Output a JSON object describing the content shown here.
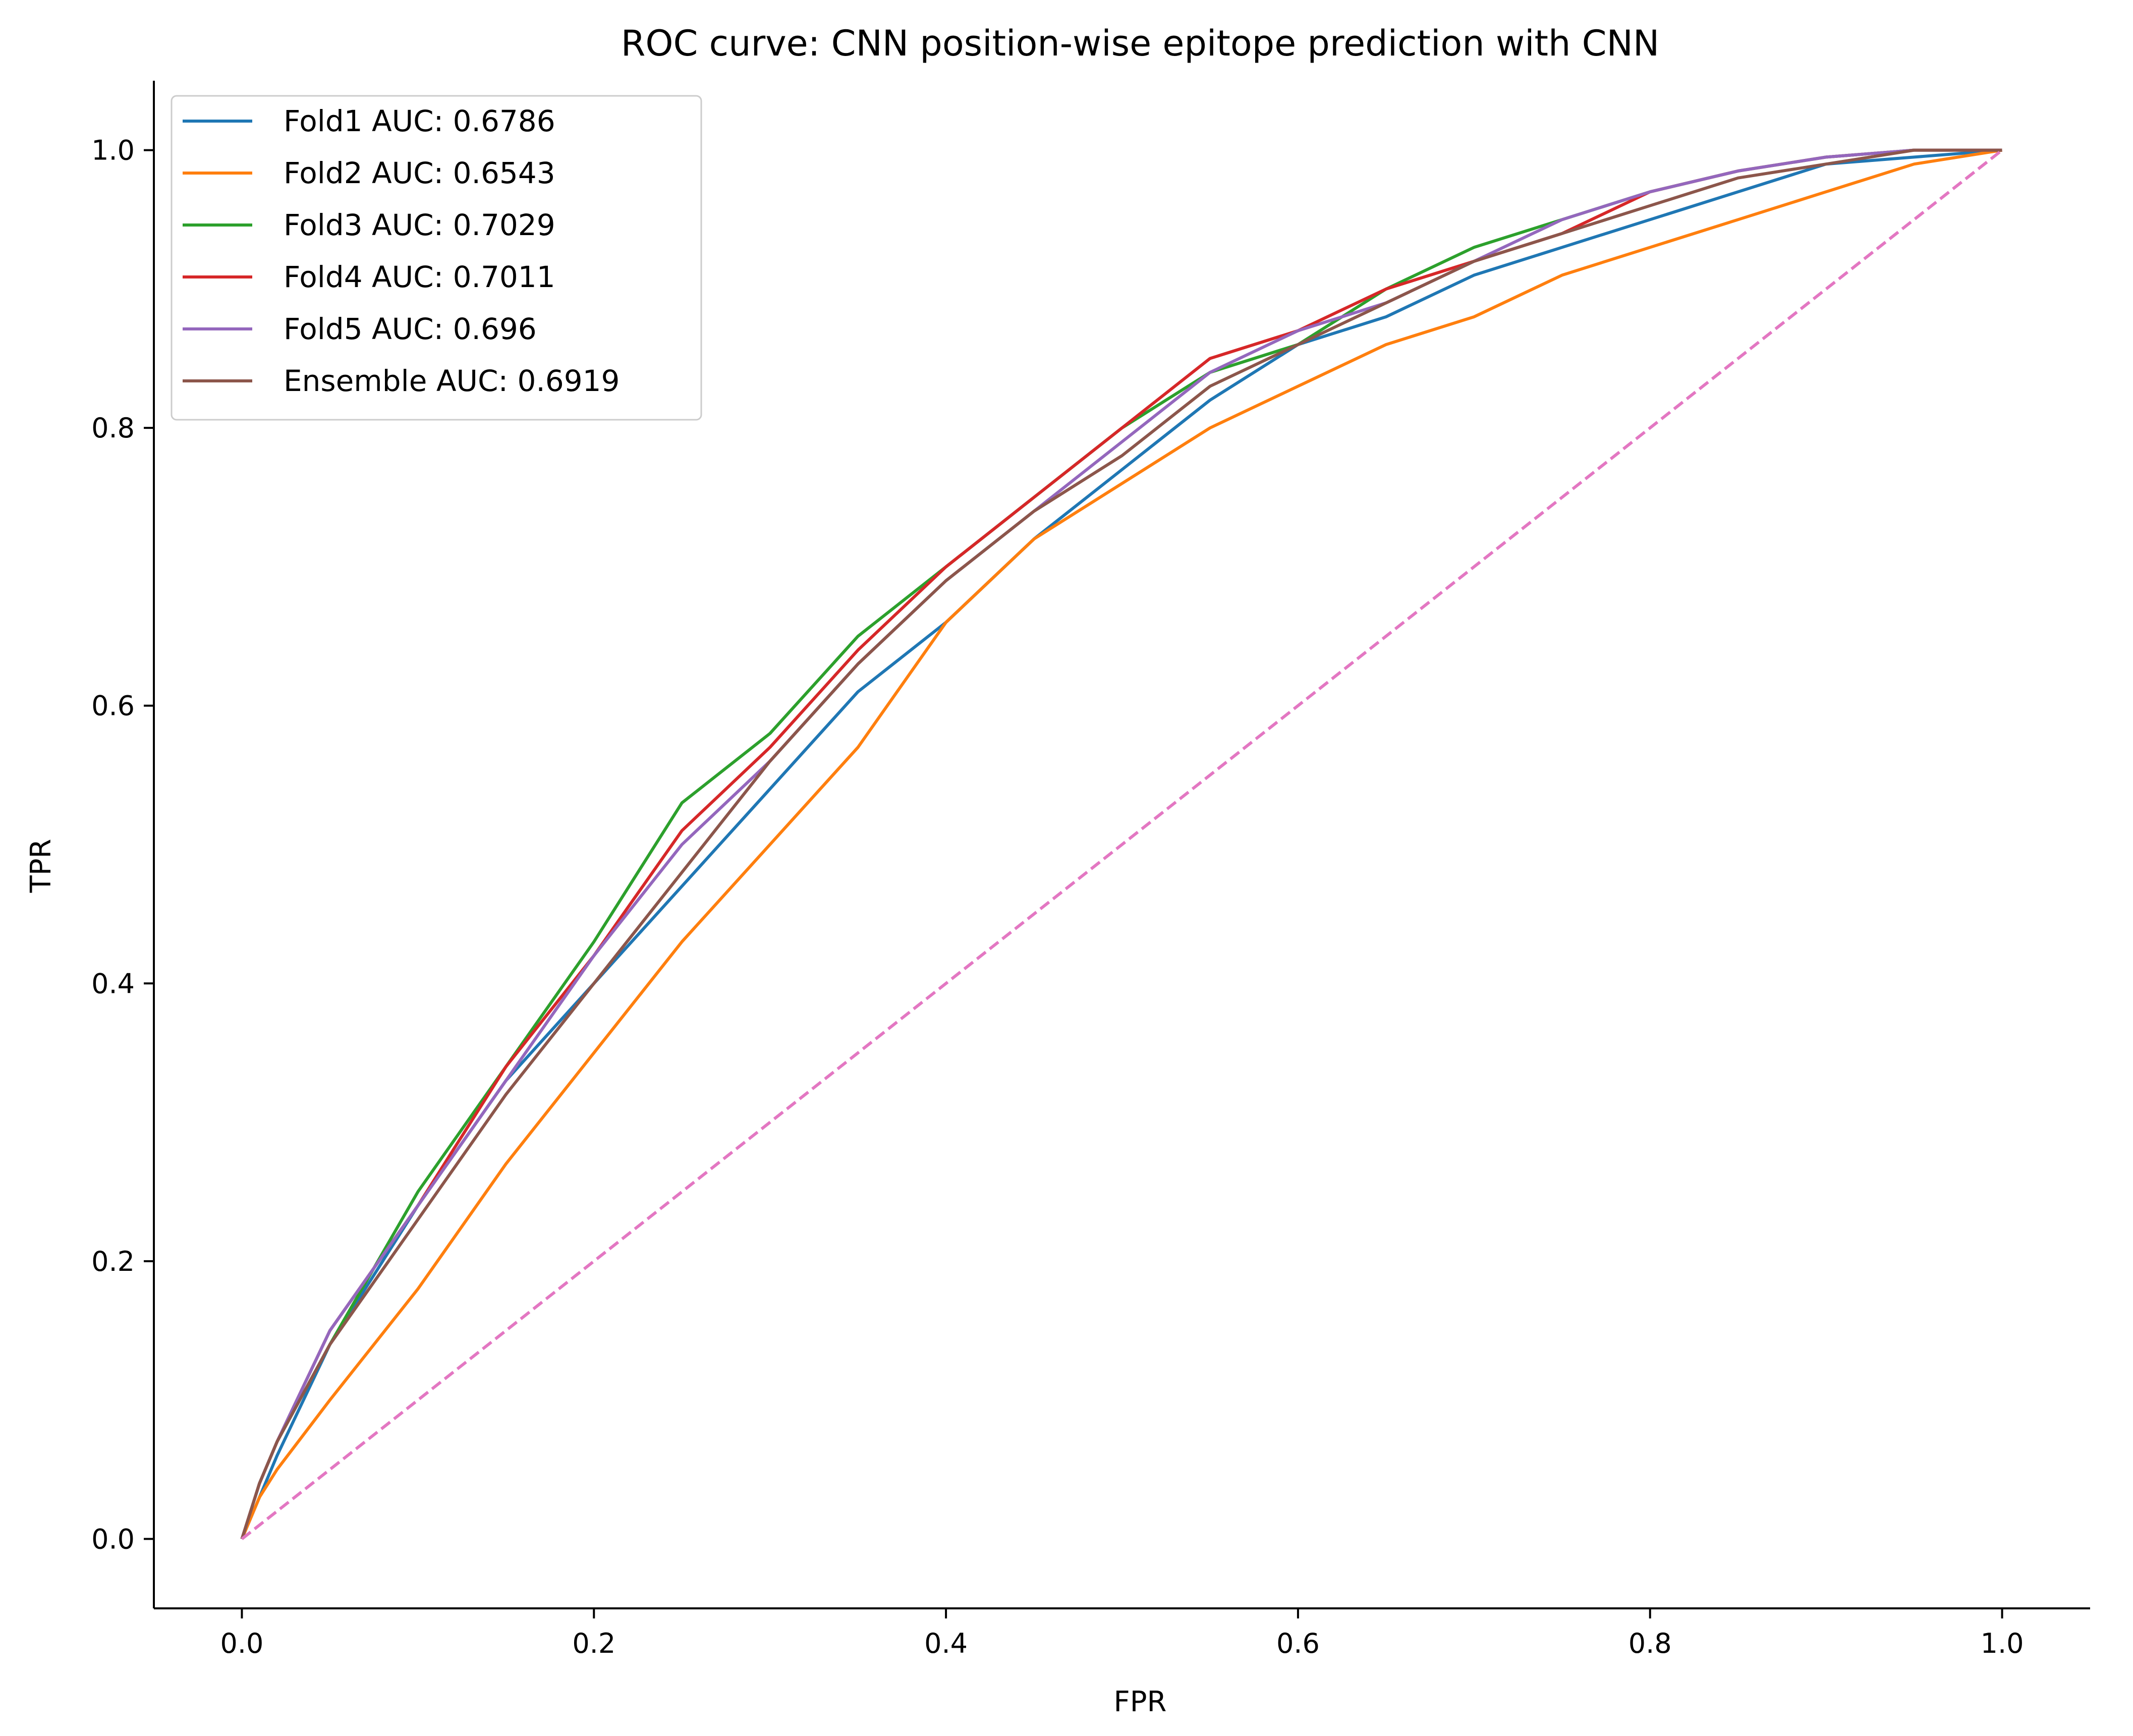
{
  "chart_data": {
    "type": "line",
    "title": "ROC curve: CNN position-wise epitope prediction with CNN",
    "xlabel": "FPR",
    "ylabel": "TPR",
    "xlim": [
      -0.05,
      1.05
    ],
    "ylim": [
      -0.05,
      1.05
    ],
    "x_ticks": [
      0.0,
      0.2,
      0.4,
      0.6,
      0.8,
      1.0
    ],
    "y_ticks": [
      0.0,
      0.2,
      0.4,
      0.6,
      0.8,
      1.0
    ],
    "x_tick_labels": [
      "0.0",
      "0.2",
      "0.4",
      "0.6",
      "0.8",
      "1.0"
    ],
    "y_tick_labels": [
      "0.0",
      "0.2",
      "0.4",
      "0.6",
      "0.8",
      "1.0"
    ],
    "grid": false,
    "legend_position": "upper-left",
    "series": [
      {
        "name": "Fold1 AUC: 0.6786",
        "color": "#1f77b4",
        "style": "solid",
        "x": [
          0,
          0.01,
          0.02,
          0.05,
          0.1,
          0.15,
          0.2,
          0.25,
          0.3,
          0.35,
          0.4,
          0.45,
          0.5,
          0.55,
          0.6,
          0.65,
          0.7,
          0.75,
          0.8,
          0.85,
          0.9,
          0.95,
          1.0
        ],
        "y": [
          0,
          0.03,
          0.06,
          0.14,
          0.24,
          0.33,
          0.4,
          0.47,
          0.54,
          0.61,
          0.66,
          0.72,
          0.77,
          0.82,
          0.86,
          0.88,
          0.91,
          0.93,
          0.95,
          0.97,
          0.99,
          0.995,
          1.0
        ]
      },
      {
        "name": "Fold2 AUC: 0.6543",
        "color": "#ff7f0e",
        "style": "solid",
        "x": [
          0,
          0.01,
          0.02,
          0.05,
          0.1,
          0.15,
          0.2,
          0.25,
          0.3,
          0.35,
          0.4,
          0.45,
          0.5,
          0.55,
          0.6,
          0.65,
          0.7,
          0.75,
          0.8,
          0.85,
          0.9,
          0.95,
          1.0
        ],
        "y": [
          0,
          0.03,
          0.05,
          0.1,
          0.18,
          0.27,
          0.35,
          0.43,
          0.5,
          0.57,
          0.66,
          0.72,
          0.76,
          0.8,
          0.83,
          0.86,
          0.88,
          0.91,
          0.93,
          0.95,
          0.97,
          0.99,
          1.0
        ]
      },
      {
        "name": "Fold3 AUC: 0.7029",
        "color": "#2ca02c",
        "style": "solid",
        "x": [
          0,
          0.01,
          0.02,
          0.05,
          0.1,
          0.15,
          0.2,
          0.25,
          0.3,
          0.35,
          0.4,
          0.45,
          0.5,
          0.55,
          0.6,
          0.65,
          0.7,
          0.75,
          0.8,
          0.85,
          0.9,
          0.95,
          1.0
        ],
        "y": [
          0,
          0.04,
          0.07,
          0.14,
          0.25,
          0.34,
          0.43,
          0.53,
          0.58,
          0.65,
          0.7,
          0.75,
          0.8,
          0.84,
          0.86,
          0.9,
          0.93,
          0.95,
          0.97,
          0.985,
          0.995,
          1.0,
          1.0
        ]
      },
      {
        "name": "Fold4 AUC: 0.7011",
        "color": "#d62728",
        "style": "solid",
        "x": [
          0,
          0.01,
          0.02,
          0.05,
          0.1,
          0.15,
          0.2,
          0.25,
          0.3,
          0.35,
          0.4,
          0.45,
          0.5,
          0.55,
          0.6,
          0.65,
          0.7,
          0.75,
          0.8,
          0.85,
          0.9,
          0.95,
          1.0
        ],
        "y": [
          0,
          0.04,
          0.07,
          0.15,
          0.24,
          0.34,
          0.42,
          0.51,
          0.57,
          0.64,
          0.7,
          0.75,
          0.8,
          0.85,
          0.87,
          0.9,
          0.92,
          0.94,
          0.97,
          0.985,
          0.995,
          1.0,
          1.0
        ]
      },
      {
        "name": "Fold5 AUC: 0.696",
        "color": "#9467bd",
        "style": "solid",
        "x": [
          0,
          0.01,
          0.02,
          0.05,
          0.1,
          0.15,
          0.2,
          0.25,
          0.3,
          0.35,
          0.4,
          0.45,
          0.5,
          0.55,
          0.6,
          0.65,
          0.7,
          0.75,
          0.8,
          0.85,
          0.9,
          0.95,
          1.0
        ],
        "y": [
          0,
          0.04,
          0.07,
          0.15,
          0.24,
          0.33,
          0.42,
          0.5,
          0.56,
          0.63,
          0.69,
          0.74,
          0.79,
          0.84,
          0.87,
          0.89,
          0.92,
          0.95,
          0.97,
          0.985,
          0.995,
          1.0,
          1.0
        ]
      },
      {
        "name": "Ensemble AUC: 0.6919",
        "color": "#8c564b",
        "style": "solid",
        "x": [
          0,
          0.01,
          0.02,
          0.05,
          0.1,
          0.15,
          0.2,
          0.25,
          0.3,
          0.35,
          0.4,
          0.45,
          0.5,
          0.55,
          0.6,
          0.65,
          0.7,
          0.75,
          0.8,
          0.85,
          0.9,
          0.95,
          1.0
        ],
        "y": [
          0,
          0.04,
          0.07,
          0.14,
          0.23,
          0.32,
          0.4,
          0.48,
          0.56,
          0.63,
          0.69,
          0.74,
          0.78,
          0.83,
          0.86,
          0.89,
          0.92,
          0.94,
          0.96,
          0.98,
          0.99,
          1.0,
          1.0
        ]
      },
      {
        "name": "",
        "color": "#e377c2",
        "style": "dashed",
        "x": [
          0,
          1
        ],
        "y": [
          0,
          1
        ]
      }
    ]
  }
}
